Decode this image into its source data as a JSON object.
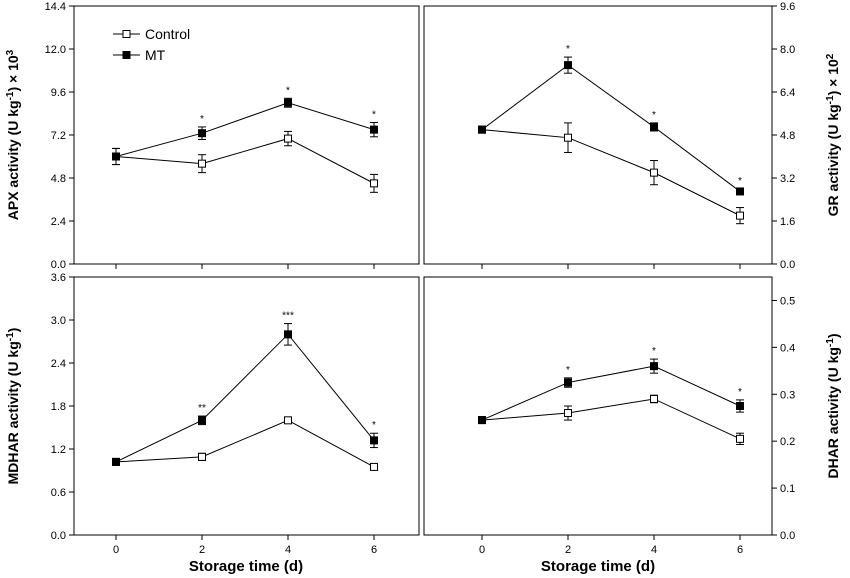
{
  "legend": {
    "control": "Control",
    "mt": "MT"
  },
  "xlabel": "Storage time (d)",
  "chart_data": [
    {
      "type": "line",
      "ylabel": "APX activity (U kg",
      "ylabel_sup": "-1",
      "ylabel_tail": ") × 10",
      "ylabel_tail_sup": "3",
      "ylim": [
        0,
        14.4
      ],
      "yticks": [
        "0.0",
        "2.4",
        "4.8",
        "7.2",
        "9.6",
        "12.0",
        "14.4"
      ],
      "x": [
        0,
        2,
        4,
        6
      ],
      "xticks": [],
      "series": [
        {
          "name": "Control",
          "values": [
            6.0,
            5.6,
            7.0,
            4.5
          ],
          "errors": [
            0.45,
            0.5,
            0.4,
            0.5
          ]
        },
        {
          "name": "MT",
          "values": [
            6.0,
            7.3,
            9.0,
            7.5
          ],
          "errors": [
            0.45,
            0.35,
            0.25,
            0.4
          ]
        }
      ],
      "annotations": [
        "",
        "*",
        "*",
        "*"
      ]
    },
    {
      "type": "line",
      "ylabel": "GR activity (U kg",
      "ylabel_sup": "-1",
      "ylabel_tail": ") × 10",
      "ylabel_tail_sup": "2",
      "ylim": [
        0,
        9.6
      ],
      "yticks": [
        "0.0",
        "1.6",
        "3.2",
        "4.8",
        "6.4",
        "8.0",
        "9.6"
      ],
      "x": [
        0,
        2,
        4,
        6
      ],
      "xticks": [],
      "series": [
        {
          "name": "Control",
          "values": [
            5.0,
            4.7,
            3.4,
            1.8
          ],
          "errors": [
            0.05,
            0.55,
            0.45,
            0.3
          ]
        },
        {
          "name": "MT",
          "values": [
            5.0,
            7.4,
            5.1,
            2.7
          ],
          "errors": [
            0.05,
            0.3,
            0.15,
            0.1
          ]
        }
      ],
      "annotations": [
        "",
        "*",
        "*",
        "*"
      ]
    },
    {
      "type": "line",
      "ylabel": "MDHAR activity (U kg",
      "ylabel_sup": "-1",
      "ylabel_tail": ")",
      "ylabel_tail_sup": "",
      "ylim": [
        0,
        3.6
      ],
      "yticks": [
        "0.0",
        "0.6",
        "1.2",
        "1.8",
        "2.4",
        "3.0",
        "3.6"
      ],
      "x": [
        0,
        2,
        4,
        6
      ],
      "xticks": [
        "0",
        "2",
        "4",
        "6"
      ],
      "series": [
        {
          "name": "Control",
          "values": [
            1.02,
            1.09,
            1.6,
            0.95
          ],
          "errors": [
            0.03,
            0.05,
            0.03,
            0.03
          ]
        },
        {
          "name": "MT",
          "values": [
            1.02,
            1.6,
            2.8,
            1.32
          ],
          "errors": [
            0.03,
            0.06,
            0.15,
            0.1
          ]
        }
      ],
      "annotations": [
        "",
        "**",
        "***",
        "*"
      ]
    },
    {
      "type": "line",
      "ylabel": "DHAR activity (U kg",
      "ylabel_sup": "-1",
      "ylabel_tail": ")",
      "ylabel_tail_sup": "",
      "ylim": [
        0,
        0.55
      ],
      "yticks": [
        "0.0",
        "0.1",
        "0.2",
        "0.3",
        "0.4",
        "0.5"
      ],
      "x": [
        0,
        2,
        4,
        6
      ],
      "xticks": [
        "0",
        "2",
        "4",
        "6"
      ],
      "series": [
        {
          "name": "Control",
          "values": [
            0.245,
            0.26,
            0.29,
            0.205
          ],
          "errors": [
            0.003,
            0.015,
            0.008,
            0.012
          ]
        },
        {
          "name": "MT",
          "values": [
            0.245,
            0.325,
            0.36,
            0.275
          ],
          "errors": [
            0.003,
            0.01,
            0.015,
            0.013
          ]
        }
      ],
      "annotations": [
        "",
        "*",
        "*",
        "*"
      ]
    }
  ]
}
